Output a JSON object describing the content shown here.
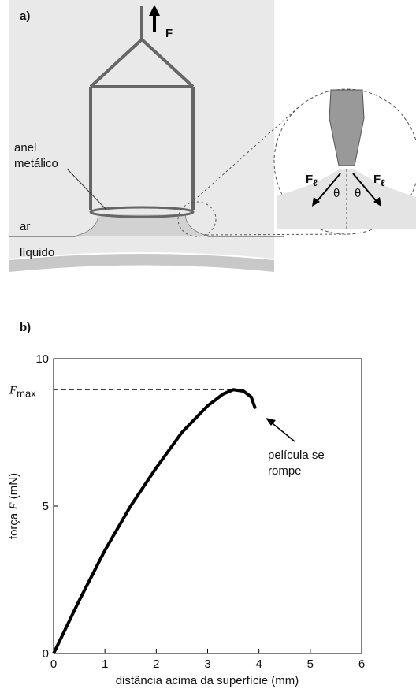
{
  "diagram": {
    "panel_label": "a)",
    "force_label": "F",
    "ring_label": [
      "anel",
      "metálico"
    ],
    "air_label": "ar",
    "liquid_label": "líquido",
    "tension_label": {
      "symbol": "F",
      "sub": "ℓ"
    },
    "angle_label": "θ"
  },
  "chart_data": {
    "type": "line",
    "panel_label": "b)",
    "x_label": "distância acima da superfície (mm)",
    "y_label": [
      "força ",
      "F",
      " (mN)"
    ],
    "x": [
      0,
      0.5,
      1,
      1.5,
      2,
      2.5,
      3,
      3.3,
      3.5,
      3.7,
      3.85,
      3.93
    ],
    "series": [
      {
        "color": "#000000",
        "values": [
          0,
          1.8,
          3.5,
          5.0,
          6.3,
          7.5,
          8.4,
          8.8,
          8.95,
          8.9,
          8.7,
          8.3
        ]
      }
    ],
    "xlim": [
      0,
      6
    ],
    "xticks": [
      0,
      1,
      2,
      3,
      4,
      5,
      6
    ],
    "ylim": [
      0,
      10
    ],
    "yticks": [
      0,
      5,
      10
    ],
    "fmax": {
      "symbol": "F",
      "sub": "max",
      "value": 8.95
    },
    "annotation": [
      "película se",
      "rompe"
    ]
  }
}
